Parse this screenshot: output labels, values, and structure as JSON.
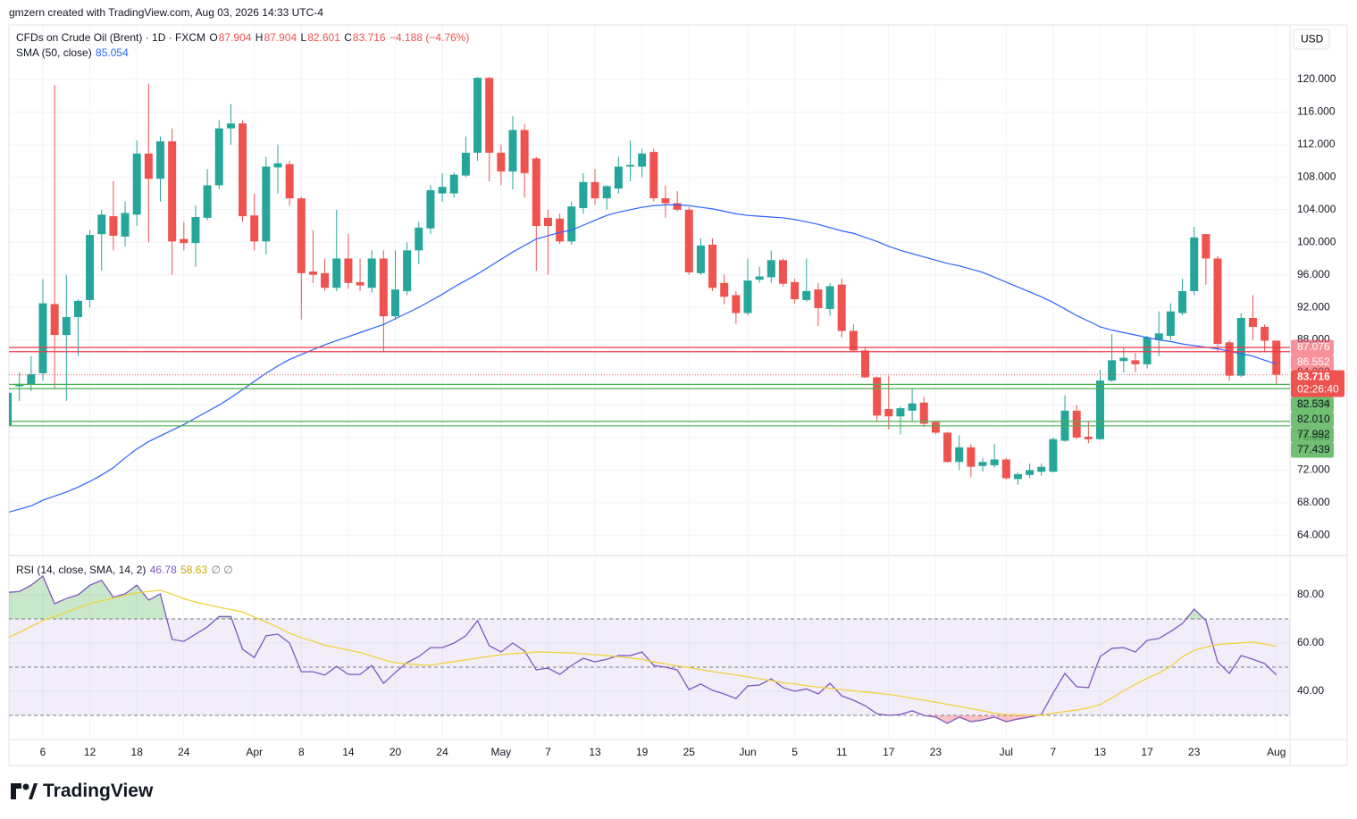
{
  "header": {
    "attribution": "gmzern created with TradingView.com, Aug 03, 2026 14:33 UTC-4"
  },
  "footer": {
    "logo": "TradingView"
  },
  "chart_data": [
    {
      "type": "candlestick",
      "title": "CFDs on Crude Oil (Brent) · 1D · FXCM",
      "ohlc_labels": [
        "O",
        "H",
        "L",
        "C"
      ],
      "change_label": "−4.188 (−4.76%)",
      "currency": "USD",
      "countdown": "02:26:40",
      "up_color": "#26a69a",
      "down_color": "#ef5350",
      "categories": [
        null,
        null,
        null,
        "6",
        null,
        null,
        null,
        "12",
        null,
        null,
        null,
        "18",
        null,
        null,
        null,
        "24",
        null,
        null,
        null,
        null,
        null,
        "Apr",
        null,
        null,
        null,
        "8",
        null,
        null,
        null,
        "14",
        null,
        null,
        null,
        "20",
        null,
        null,
        null,
        "24",
        null,
        null,
        null,
        null,
        "May",
        null,
        null,
        null,
        "7",
        null,
        null,
        null,
        "13",
        null,
        null,
        null,
        "19",
        null,
        null,
        null,
        "25",
        null,
        null,
        null,
        null,
        "Jun",
        null,
        null,
        null,
        "5",
        null,
        null,
        null,
        "11",
        null,
        null,
        null,
        "17",
        null,
        null,
        null,
        "23",
        null,
        null,
        null,
        null,
        null,
        "Jul",
        null,
        null,
        null,
        "7",
        null,
        null,
        null,
        "13",
        null,
        null,
        null,
        "17",
        null,
        null,
        null,
        "23",
        null,
        null,
        null,
        null,
        null,
        null,
        "Aug"
      ],
      "open": [
        77.5,
        82.3,
        82.5,
        83.9,
        92.4,
        88.6,
        90.8,
        92.9,
        101,
        103.2,
        100.7,
        103.4,
        110.9,
        107.8,
        112.4,
        100.4,
        99.9,
        103,
        107,
        114,
        114.6,
        103.3,
        100.1,
        109.2,
        109.6,
        105.4,
        96.4,
        96.2,
        94.4,
        98,
        95.1,
        94.4,
        98,
        90.9,
        94,
        99,
        101.7,
        106,
        106,
        108.2,
        111,
        120.2,
        111,
        108.7,
        113.8,
        110.3,
        103,
        102.9,
        100.1,
        104.2,
        107.4,
        105.4,
        106.6,
        109.3,
        109.3,
        111.1,
        105.4,
        104.8,
        104,
        96.2,
        99.7,
        95,
        93.5,
        91.3,
        95.4,
        95.7,
        97.8,
        95.1,
        92.9,
        94.2,
        91.8,
        94.8,
        89.1,
        86.7,
        83.4,
        79.5,
        78.6,
        79.3,
        80.3,
        77.9,
        76.6,
        73,
        74.8,
        72.5,
        72.6,
        73.3,
        70.9,
        71.4,
        71.8,
        71.8,
        75.6,
        79.3,
        76.1,
        75.8,
        83,
        85.4,
        85.5,
        85,
        88,
        88.5,
        91.3,
        94,
        101,
        98,
        87.7,
        83.6,
        90.7,
        89.6,
        87.904
      ],
      "high": [
        82,
        84,
        86,
        95.5,
        119.3,
        96,
        93,
        101.5,
        104,
        107.5,
        105,
        112.5,
        119.5,
        113,
        114,
        102.5,
        104.5,
        109,
        115,
        117,
        115,
        106,
        110.5,
        112,
        110,
        105.6,
        101.5,
        98,
        104,
        101,
        98,
        99,
        99,
        99,
        100,
        102.5,
        107,
        108.5,
        108.6,
        113,
        120.3,
        120.3,
        112,
        115.5,
        114.5,
        110.5,
        104,
        103.5,
        105,
        108.5,
        109,
        107,
        110.5,
        112.5,
        111.5,
        111.5,
        107,
        106.3,
        104.3,
        100.5,
        100.5,
        96,
        94,
        98,
        97,
        99,
        98,
        95.5,
        98,
        95,
        95,
        95.5,
        89.9,
        87,
        83.5,
        83.6,
        79.8,
        82,
        81,
        78,
        76.7,
        76.3,
        75.2,
        73.5,
        75.2,
        73.5,
        71.7,
        72.8,
        72.8,
        76,
        81.2,
        80,
        78,
        84.3,
        88.7,
        87,
        86.4,
        88.5,
        91.5,
        92.5,
        95.5,
        101.9,
        101,
        98.3,
        88,
        91.3,
        93.5,
        89.9,
        87.904
      ],
      "low": [
        77.3,
        80.5,
        81.7,
        83,
        82,
        80.5,
        86,
        92,
        96.5,
        99,
        99.5,
        102,
        100,
        105,
        96,
        99,
        97,
        102.7,
        106.5,
        112,
        102.5,
        99,
        98.5,
        106,
        104.5,
        90.5,
        95,
        94,
        94,
        94.3,
        94,
        93.8,
        86.5,
        90.5,
        93.5,
        97.3,
        101,
        105,
        105.5,
        108,
        110,
        107.5,
        107,
        106.5,
        105.5,
        96.5,
        96,
        99.8,
        99.7,
        103.5,
        104.6,
        104,
        106,
        107.5,
        108,
        105,
        103,
        103.8,
        96,
        96,
        94,
        92.4,
        90,
        91,
        95,
        95,
        94.6,
        92.5,
        92.7,
        89.7,
        91,
        88.3,
        86.5,
        83.3,
        78,
        77,
        76.4,
        78,
        77.3,
        76.4,
        72.9,
        72,
        71.1,
        71.8,
        72.3,
        70.8,
        70.2,
        71,
        71.3,
        71.7,
        75.5,
        75.8,
        75.3,
        75.7,
        82.8,
        84,
        84,
        84.5,
        86,
        88,
        91,
        93.5,
        94.8,
        86.5,
        83,
        83.4,
        88,
        86.5,
        82.601
      ],
      "close": [
        81.5,
        82.6,
        83.8,
        92.5,
        88.6,
        90.8,
        92.8,
        100.9,
        103.4,
        100.8,
        103.6,
        110.9,
        107.8,
        112.4,
        100.1,
        99.9,
        103.1,
        107,
        114,
        114.6,
        103.2,
        100.1,
        109.3,
        109.7,
        105.4,
        96.2,
        96,
        94.4,
        98,
        95,
        94.7,
        98,
        90.9,
        94.2,
        99,
        101.8,
        106.4,
        106.8,
        108.3,
        111,
        120.2,
        111,
        108.7,
        113.8,
        108.5,
        102,
        102,
        100.1,
        104.4,
        107.4,
        105.4,
        106.9,
        109.3,
        109.5,
        110.9,
        105.4,
        104.8,
        104,
        96.3,
        99.6,
        94.4,
        93.3,
        91.3,
        95.3,
        95.8,
        97.8,
        94.9,
        93,
        94,
        91.9,
        94.6,
        89.1,
        86.7,
        83.4,
        78.7,
        78.6,
        79.6,
        80.2,
        77.7,
        76.6,
        73,
        74.8,
        72.4,
        73,
        73.3,
        71,
        71.5,
        72,
        72.4,
        75.8,
        79.3,
        76,
        75.8,
        83,
        85.5,
        85.8,
        85,
        88.3,
        88.8,
        91.5,
        94,
        100.6,
        98,
        87.5,
        83.6,
        90.7,
        89.6,
        87.9,
        83.716
      ],
      "overlay": {
        "name": "SMA (50, close)",
        "color": "#2962ff",
        "values": [
          66.8,
          67.2,
          67.6,
          68.3,
          68.8,
          69.3,
          69.9,
          70.6,
          71.4,
          72.3,
          73.5,
          74.6,
          75.5,
          76.2,
          76.9,
          77.6,
          78.4,
          79.2,
          80.0,
          80.9,
          81.9,
          82.9,
          83.9,
          84.8,
          85.6,
          86.2,
          86.8,
          87.4,
          87.9,
          88.4,
          88.9,
          89.4,
          89.9,
          90.6,
          91.3,
          92.0,
          92.8,
          93.6,
          94.5,
          95.3,
          96.1,
          97.0,
          97.9,
          98.8,
          99.6,
          100.4,
          100.8,
          101.2,
          101.5,
          102.1,
          102.7,
          103.3,
          103.7,
          104.0,
          104.3,
          104.5,
          104.6,
          104.6,
          104.5,
          104.3,
          104.1,
          103.8,
          103.5,
          103.3,
          103.2,
          103.1,
          103.0,
          102.8,
          102.5,
          102.2,
          101.8,
          101.4,
          101.1,
          100.6,
          100.1,
          99.5,
          99.0,
          98.6,
          98.2,
          97.8,
          97.4,
          97.1,
          96.7,
          96.3,
          95.7,
          95.1,
          94.5,
          93.9,
          93.3,
          92.6,
          91.8,
          91.0,
          90.3,
          89.6,
          89.2,
          88.9,
          88.6,
          88.3,
          88.0,
          87.8,
          87.5,
          87.3,
          87.1,
          86.9,
          86.6,
          86.3,
          86.0,
          85.5,
          85.054
        ]
      },
      "price_lines": [
        {
          "value": 87.076,
          "label": "87.076",
          "color": "#f23645",
          "label_text": "#ffffff"
        },
        {
          "value": 86.552,
          "label": "86.552",
          "color": "#f23645",
          "label_text": "#ffffff"
        },
        {
          "value": 82.534,
          "label": "82.534",
          "color": "#4caf50",
          "label_text": "#131722"
        },
        {
          "value": 82.01,
          "label": "82.010",
          "color": "#4caf50",
          "label_text": "#131722"
        },
        {
          "value": 77.992,
          "label": "77.992",
          "color": "#4caf50",
          "label_text": "#131722"
        },
        {
          "value": 77.439,
          "label": "77.439",
          "color": "#4caf50",
          "label_text": "#131722"
        }
      ],
      "ylim": [
        61.5,
        126.7
      ],
      "yticks": [
        {
          "value": 64,
          "label": "64.000"
        },
        {
          "value": 68,
          "label": "68.000"
        },
        {
          "value": 72,
          "label": "72.000"
        },
        {
          "value": 76,
          "label": "76.000"
        },
        {
          "value": 80,
          "label": "80.000"
        },
        {
          "value": 84,
          "label": "84.000"
        },
        {
          "value": 88,
          "label": "88.000"
        },
        {
          "value": 92,
          "label": "92.000"
        },
        {
          "value": 96,
          "label": "96.000"
        },
        {
          "value": 100,
          "label": "100.000"
        },
        {
          "value": 104,
          "label": "104.000"
        },
        {
          "value": 108,
          "label": "108.000"
        },
        {
          "value": 112,
          "label": "112.000"
        },
        {
          "value": 116,
          "label": "116.000"
        },
        {
          "value": 120,
          "label": "120.000"
        }
      ],
      "grid": true
    },
    {
      "type": "line",
      "extra": "∅ ∅",
      "series": [
        {
          "name": "RSI (14, close, SMA, 14, 2)",
          "color": "#7e57c2",
          "values": [
            81,
            81.4,
            84,
            87.8,
            76.3,
            78.5,
            80,
            84,
            86,
            79,
            80.4,
            84,
            77.8,
            80.4,
            61.5,
            60.7,
            63.7,
            66.7,
            71,
            71,
            57.4,
            54,
            63,
            63.7,
            60,
            48.1,
            48.1,
            46.7,
            50.4,
            47,
            47,
            50.7,
            43.3,
            47.8,
            51.9,
            54.4,
            58.1,
            58.1,
            60,
            63,
            69.3,
            58.9,
            56.3,
            60,
            56.7,
            48.9,
            49.6,
            47,
            50.7,
            53.7,
            52.2,
            53.3,
            54.8,
            54.8,
            56.3,
            50.7,
            50,
            48.9,
            40.7,
            43,
            40.4,
            38.9,
            37,
            42.2,
            42.6,
            45.2,
            41.5,
            40,
            41,
            38.9,
            43.3,
            38.1,
            36.3,
            34,
            30.7,
            30,
            30.4,
            31.9,
            30,
            29.3,
            26.7,
            29.3,
            27.4,
            28.1,
            29.3,
            27.4,
            28.5,
            29.3,
            30.4,
            39.3,
            47.4,
            41.9,
            41.5,
            54.4,
            57.8,
            58.1,
            56.3,
            61.1,
            61.9,
            64.8,
            68.1,
            74.1,
            69.3,
            52.2,
            47.4,
            54.8,
            53.3,
            51.5,
            46.78
          ]
        },
        {
          "color": "#f0d23c",
          "values": [
            62.2,
            64.4,
            66.9,
            69.3,
            71.0,
            72.8,
            74.6,
            76.4,
            77.5,
            78.7,
            79.8,
            80.8,
            81.4,
            81.9,
            80.3,
            78.4,
            77.0,
            75.9,
            74.8,
            73.9,
            72.9,
            70.8,
            68.7,
            66.5,
            64.1,
            62.2,
            60.8,
            59.1,
            58.1,
            57.1,
            56.1,
            54.6,
            53.1,
            51.8,
            51.4,
            51.0,
            50.8,
            51.6,
            52.3,
            53.0,
            53.8,
            54.5,
            55.2,
            55.6,
            55.9,
            56.3,
            56.2,
            56.0,
            55.9,
            55.5,
            55.2,
            54.8,
            54.3,
            53.8,
            53.3,
            52.2,
            51.4,
            50.5,
            49.8,
            49.0,
            48.2,
            47.5,
            46.7,
            46.0,
            45.2,
            44.4,
            43.5,
            43.1,
            42.3,
            41.7,
            41.2,
            40.7,
            40.2,
            39.7,
            39.2,
            38.7,
            38.0,
            37.1,
            36.3,
            35.5,
            34.6,
            33.7,
            32.8,
            31.9,
            30.9,
            30.3,
            30.2,
            30.1,
            30.1,
            30.9,
            31.6,
            32.2,
            33.1,
            34.5,
            37.2,
            40.2,
            42.9,
            45.4,
            47.6,
            50.4,
            54.3,
            57.0,
            58.3,
            59.4,
            59.8,
            60.1,
            60.4,
            59.6,
            58.63
          ]
        }
      ],
      "levels": [
        30,
        50,
        70
      ],
      "fill_colors": {
        "band": "#7e57c2",
        "overbought": "#4caf50",
        "oversold": "#f23645"
      },
      "ylim": [
        20,
        96.3
      ],
      "yticks": [
        {
          "value": 40,
          "label": "40.00"
        },
        {
          "value": 60,
          "label": "60.00"
        },
        {
          "value": 80,
          "label": "80.00"
        }
      ],
      "grid": true
    }
  ]
}
